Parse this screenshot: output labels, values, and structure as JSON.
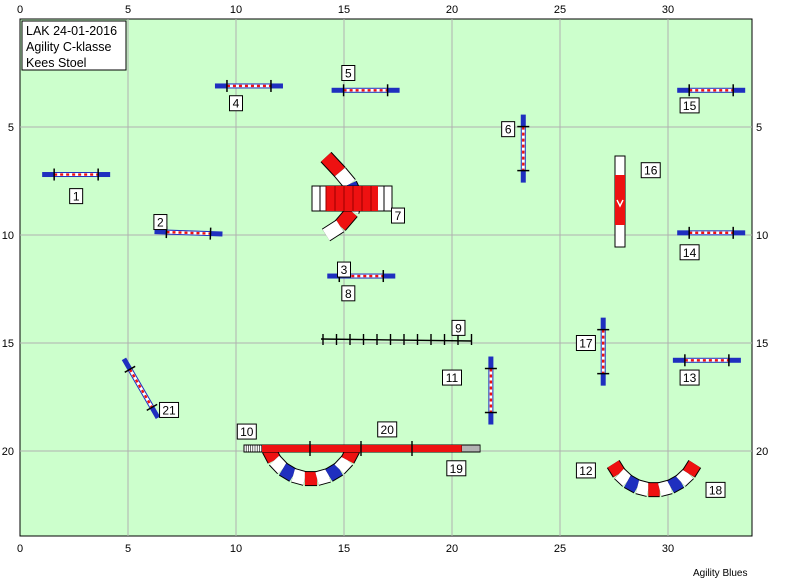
{
  "course": {
    "info_lines": [
      "LAK 24-01-2016",
      "Agility C-klasse",
      "Kees Stoel"
    ],
    "footer": "Agility Blues"
  },
  "axes": {
    "x_ticks": [
      "0",
      "5",
      "10",
      "15",
      "20",
      "25",
      "30"
    ],
    "y_ticks": [
      "5",
      "10",
      "15",
      "20"
    ],
    "x_range": [
      0,
      34
    ],
    "y_range": [
      0,
      24
    ]
  },
  "colors": {
    "field": "#ccffcc",
    "grid": "#b0b0b0",
    "bar_blue": "#1f2fbf",
    "red": "#ee1111",
    "white": "#ffffff"
  },
  "obstacles": [
    {
      "number": "1",
      "type": "jump",
      "x": 2.6,
      "y": 7.2,
      "angle": 0,
      "label": [
        2.6,
        8.2
      ]
    },
    {
      "number": "2",
      "type": "jump",
      "x": 7.8,
      "y": 9.9,
      "angle": 2,
      "label": [
        6.5,
        9.4
      ]
    },
    {
      "number": "3",
      "type": "tunnel",
      "label": [
        15.0,
        11.6
      ]
    },
    {
      "number": "4",
      "type": "jump",
      "x": 10.6,
      "y": 3.1,
      "angle": 0,
      "label": [
        10.0,
        3.9
      ]
    },
    {
      "number": "5",
      "type": "jump",
      "x": 16.0,
      "y": 3.3,
      "angle": 0,
      "label": [
        15.2,
        2.5
      ]
    },
    {
      "number": "6",
      "type": "jump",
      "x": 23.3,
      "y": 6.0,
      "angle": 90,
      "label": [
        22.6,
        5.1
      ]
    },
    {
      "number": "7",
      "type": "tunnel",
      "label": [
        17.5,
        9.1
      ]
    },
    {
      "number": "8",
      "type": "jump",
      "x": 15.8,
      "y": 11.9,
      "angle": 0,
      "label": [
        15.2,
        12.7
      ]
    },
    {
      "number": "9",
      "type": "weave",
      "label": [
        20.3,
        14.3
      ]
    },
    {
      "number": "10",
      "type": "tunnel",
      "label": [
        10.5,
        19.1
      ]
    },
    {
      "number": "11",
      "type": "jump",
      "x": 21.8,
      "y": 17.2,
      "angle": 90,
      "label": [
        20.0,
        16.6
      ]
    },
    {
      "number": "12",
      "type": "tunnel",
      "label": [
        26.2,
        20.9
      ]
    },
    {
      "number": "13",
      "type": "jump",
      "x": 31.8,
      "y": 15.8,
      "angle": 0,
      "label": [
        31.0,
        16.6
      ]
    },
    {
      "number": "14",
      "type": "jump",
      "x": 32.0,
      "y": 9.9,
      "angle": 0,
      "label": [
        31.0,
        10.8
      ]
    },
    {
      "number": "15",
      "type": "jump",
      "x": 32.0,
      "y": 3.3,
      "angle": 0,
      "label": [
        31.0,
        4.0
      ]
    },
    {
      "number": "16",
      "type": "a-frame",
      "label": [
        29.2,
        7.0
      ]
    },
    {
      "number": "17",
      "type": "jump",
      "x": 27.0,
      "y": 15.4,
      "angle": 90,
      "label": [
        26.2,
        15.0
      ]
    },
    {
      "number": "18",
      "type": "tunnel",
      "label": [
        32.2,
        21.8
      ]
    },
    {
      "number": "19",
      "type": "dogwalk",
      "label": [
        20.2,
        20.8
      ]
    },
    {
      "number": "20",
      "type": "tunnel",
      "label": [
        17.0,
        19.0
      ]
    },
    {
      "number": "21",
      "type": "jump",
      "x": 5.6,
      "y": 17.1,
      "angle": 60,
      "label": [
        6.9,
        18.1
      ]
    }
  ]
}
